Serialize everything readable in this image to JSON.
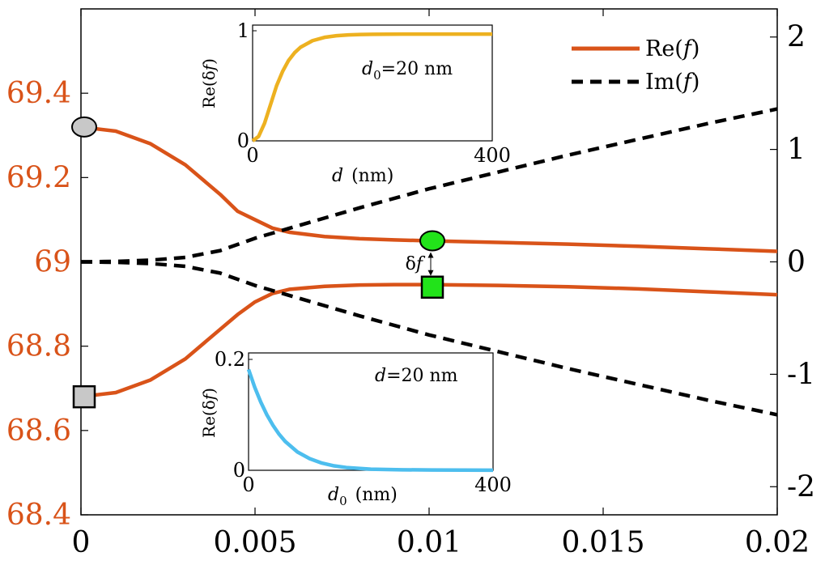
{
  "colors": {
    "re": "#D95319",
    "im": "#000000",
    "inset_top": "#EDB120",
    "inset_bottom": "#4DBEEE",
    "marker_gray": "#C8C8C8",
    "marker_green": "#22E31A",
    "left_axis_text": "#D95319",
    "right_axis_text": "#000000"
  },
  "chart_data": [
    {
      "type": "line",
      "xlim": [
        0,
        0.02
      ],
      "ylim_left": [
        68.4,
        69.6
      ],
      "ylim_right": [
        -2.25,
        2.25
      ],
      "x_ticks": [
        "0",
        "0.005",
        "0.01",
        "0.015",
        "0.02"
      ],
      "left_ticks": [
        "68.4",
        "68.6",
        "68.8",
        "69",
        "69.2",
        "69.4"
      ],
      "right_ticks": [
        "-2",
        "-1",
        "0",
        "1",
        "2"
      ],
      "legend": {
        "placement": "top-right",
        "entries": [
          {
            "label_prefix": "Re(",
            "label_var": "f",
            "label_suffix": ")",
            "style": "solid"
          },
          {
            "label_prefix": "Im(",
            "label_var": "f",
            "label_suffix": ")",
            "style": "dashed"
          }
        ]
      },
      "series": [
        {
          "name": "Re(f)",
          "axis": "left",
          "style": "solid",
          "x": [
            0,
            0.001,
            0.002,
            0.003,
            0.004,
            0.0045,
            0.005,
            0.0055,
            0.006,
            0.007,
            0.008,
            0.009,
            0.01,
            0.012,
            0.014,
            0.016,
            0.018,
            0.02
          ],
          "y": [
            69.32,
            69.31,
            69.28,
            69.23,
            69.16,
            69.12,
            69.1,
            69.08,
            69.07,
            69.06,
            69.055,
            69.052,
            69.05,
            69.046,
            69.042,
            69.037,
            69.031,
            69.025
          ]
        },
        {
          "name": "Re(f)",
          "axis": "left",
          "style": "solid",
          "x": [
            0,
            0.001,
            0.002,
            0.003,
            0.004,
            0.0045,
            0.005,
            0.0055,
            0.006,
            0.007,
            0.008,
            0.009,
            0.01,
            0.012,
            0.014,
            0.016,
            0.018,
            0.02
          ],
          "y": [
            68.68,
            68.69,
            68.72,
            68.77,
            68.84,
            68.875,
            68.905,
            68.925,
            68.935,
            68.942,
            68.945,
            68.946,
            68.946,
            68.944,
            68.941,
            68.936,
            68.929,
            68.922
          ]
        },
        {
          "name": "Im(f)",
          "axis": "right",
          "style": "dashed",
          "x": [
            0,
            0.001,
            0.002,
            0.003,
            0.004,
            0.005,
            0.006,
            0.008,
            0.01,
            0.012,
            0.014,
            0.016,
            0.018,
            0.02
          ],
          "y": [
            0,
            0.004,
            0.015,
            0.04,
            0.1,
            0.21,
            0.3,
            0.48,
            0.65,
            0.8,
            0.95,
            1.09,
            1.23,
            1.36
          ]
        },
        {
          "name": "Im(f)",
          "axis": "right",
          "style": "dashed",
          "x": [
            0,
            0.001,
            0.002,
            0.003,
            0.004,
            0.005,
            0.006,
            0.008,
            0.01,
            0.012,
            0.014,
            0.016,
            0.018,
            0.02
          ],
          "y": [
            0,
            -0.004,
            -0.015,
            -0.04,
            -0.1,
            -0.21,
            -0.3,
            -0.48,
            -0.65,
            -0.8,
            -0.95,
            -1.09,
            -1.23,
            -1.36
          ]
        }
      ],
      "markers": [
        {
          "shape": "circle",
          "fill": "gray",
          "x": 0,
          "y": 69.32
        },
        {
          "shape": "square",
          "fill": "gray",
          "x": 0,
          "y": 68.68
        },
        {
          "shape": "circle",
          "fill": "green",
          "x": 0.01,
          "y": 69.05
        },
        {
          "shape": "square",
          "fill": "green",
          "x": 0.01,
          "y": 68.94
        }
      ],
      "annotation": {
        "text_delta": "δ",
        "text_var": "f",
        "x": 0.01,
        "y_top": 69.05,
        "y_bottom": 68.94
      }
    },
    {
      "type": "line",
      "name": "inset_top",
      "xlim": [
        0,
        400
      ],
      "ylim": [
        0,
        1
      ],
      "x_ticks": [
        "0",
        "400"
      ],
      "y_ticks": [
        "0",
        "1"
      ],
      "xlabel_var": "d",
      "xlabel_unit": "(nm)",
      "ylabel_prefix": "Re(",
      "ylabel_delta": "δ",
      "ylabel_var": "f",
      "ylabel_suffix": ")",
      "annotation_var": "d",
      "annotation_sub": "0",
      "annotation_rest": "=20 nm",
      "series": [
        {
          "style": "solid",
          "x": [
            0,
            10,
            20,
            30,
            40,
            50,
            60,
            70,
            80,
            100,
            120,
            140,
            160,
            180,
            200,
            250,
            300,
            350,
            400
          ],
          "y": [
            0,
            0.04,
            0.16,
            0.33,
            0.5,
            0.63,
            0.73,
            0.8,
            0.85,
            0.91,
            0.94,
            0.955,
            0.962,
            0.966,
            0.968,
            0.97,
            0.97,
            0.97,
            0.97
          ]
        }
      ]
    },
    {
      "type": "line",
      "name": "inset_bottom",
      "xlim": [
        0,
        400
      ],
      "ylim": [
        0,
        0.2
      ],
      "x_ticks": [
        "0",
        "400"
      ],
      "y_ticks": [
        "0",
        "0.2"
      ],
      "xlabel_var": "d",
      "xlabel_sub": "0",
      "xlabel_unit": "(nm)",
      "ylabel_prefix": "Re(",
      "ylabel_delta": "δ",
      "ylabel_var": "f",
      "ylabel_suffix": ")",
      "annotation_var": "d",
      "annotation_rest": "=20 nm",
      "series": [
        {
          "style": "solid",
          "x": [
            0,
            10,
            20,
            30,
            40,
            50,
            60,
            80,
            100,
            120,
            140,
            160,
            200,
            250,
            300,
            350,
            400
          ],
          "y": [
            0.182,
            0.15,
            0.123,
            0.1,
            0.081,
            0.065,
            0.052,
            0.033,
            0.021,
            0.013,
            0.008,
            0.005,
            0.002,
            0.001,
            0.0005,
            0.0003,
            0.0002
          ]
        }
      ]
    }
  ]
}
